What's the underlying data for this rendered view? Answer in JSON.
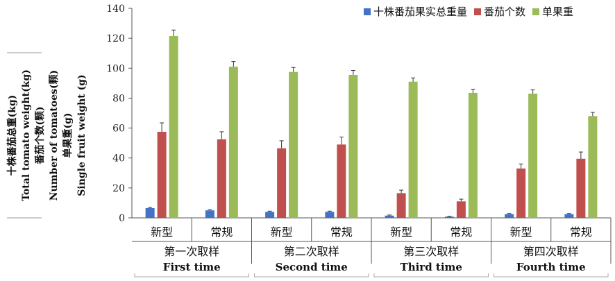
{
  "chart_data": {
    "type": "bar",
    "ylim": [
      0,
      140
    ],
    "yticks": [
      0,
      20,
      40,
      60,
      80,
      100,
      120,
      140
    ],
    "grid": false,
    "legend_position": "top-right",
    "ylabel_lines": [
      "十株番茄总重(kg)",
      "Total tomato weight(kg)",
      "番茄个数(颗)",
      "Number of tomatoes(颗)",
      "单果重(g)",
      "Single fruit weight (g)"
    ],
    "groups": [
      {
        "zh": "第一次取样",
        "en": "First time"
      },
      {
        "zh": "第二次取样",
        "en": "Second time"
      },
      {
        "zh": "第三次取样",
        "en": "Third time"
      },
      {
        "zh": "第四次取样",
        "en": "Fourth time"
      }
    ],
    "categories": [
      "新型",
      "常规",
      "新型",
      "常规",
      "新型",
      "常规",
      "新型",
      "常规"
    ],
    "series": [
      {
        "name": "十株番茄果实总重量",
        "color": "#4472C4",
        "values": [
          6.5,
          5.0,
          4.0,
          4.0,
          1.5,
          0.8,
          2.5,
          2.5
        ],
        "errors": [
          0.5,
          0.5,
          0.5,
          0.5,
          0.4,
          0.3,
          0.4,
          0.4
        ]
      },
      {
        "name": "番茄个数",
        "color": "#C0504D",
        "values": [
          57.5,
          52.5,
          46.5,
          49.0,
          16.5,
          11.0,
          33.0,
          39.5
        ],
        "errors": [
          6.0,
          5.0,
          5.0,
          5.0,
          2.0,
          1.5,
          3.0,
          4.5
        ]
      },
      {
        "name": "单果重",
        "color": "#9BBB59",
        "values": [
          121.5,
          101.0,
          97.5,
          95.5,
          91.0,
          83.5,
          83.0,
          68.0
        ],
        "errors": [
          4.0,
          3.5,
          3.0,
          3.0,
          2.5,
          2.5,
          2.5,
          2.5
        ]
      }
    ]
  }
}
